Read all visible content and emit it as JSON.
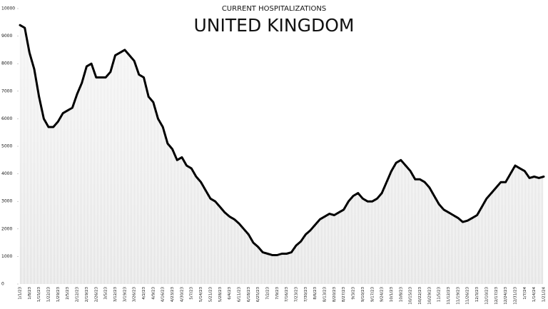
{
  "chart_data": {
    "type": "line",
    "subtitle": "CURRENT HOSPITALIZATIONS",
    "title": "UNITED KINGDOM",
    "categories": [
      "1/1/23",
      null,
      "1/8/23",
      null,
      "1/15/23",
      null,
      "1/22/23",
      null,
      "1/29/23",
      null,
      "2/5/23",
      null,
      "2/12/23",
      null,
      "2/19/23",
      null,
      "2/26/23",
      null,
      "3/5/23",
      null,
      "3/12/23",
      null,
      "3/19/23",
      null,
      "3/26/23",
      null,
      "4/2/23",
      null,
      "4/9/23",
      null,
      "4/16/23",
      null,
      "4/23/23",
      null,
      "4/30/23",
      null,
      "5/7/23",
      null,
      "5/14/23",
      null,
      "5/21/23",
      null,
      "5/28/23",
      null,
      "6/4/23",
      null,
      "6/11/23",
      null,
      "6/18/23",
      null,
      "6/25/23",
      null,
      "7/2/23",
      null,
      "7/9/23",
      null,
      "7/16/23",
      null,
      "7/23/23",
      null,
      "7/30/23",
      null,
      "8/6/23",
      null,
      "8/13/23",
      null,
      "8/20/23",
      null,
      "8/27/23",
      null,
      "9/3/23",
      null,
      "9/10/23",
      null,
      "9/17/23",
      null,
      "9/24/23",
      null,
      "10/1/23",
      null,
      "10/8/23",
      null,
      "10/15/23",
      null,
      "10/22/23",
      null,
      "10/29/23",
      null,
      "11/5/23",
      null,
      "11/12/23",
      null,
      "11/19/23",
      null,
      "11/26/23",
      null,
      "12/3/23",
      null,
      "12/10/23",
      null,
      "12/17/23",
      null,
      "12/24/23",
      null,
      "12/31/23",
      null,
      "1/7/24",
      null,
      "1/14/24",
      null,
      "1/21/24"
    ],
    "series": [
      {
        "name": "Current hospitalizations",
        "color": "#000000",
        "values": [
          9400,
          9300,
          8400,
          7800,
          6800,
          6000,
          5700,
          5700,
          5900,
          6200,
          6300,
          6400,
          6900,
          7300,
          7900,
          8000,
          7500,
          7500,
          7500,
          7700,
          8300,
          8400,
          8500,
          8300,
          8100,
          7600,
          7500,
          6800,
          6600,
          6000,
          5700,
          5100,
          4900,
          4500,
          4600,
          4300,
          4200,
          3900,
          3700,
          3400,
          3100,
          3000,
          2800,
          2600,
          2450,
          2350,
          2200,
          2000,
          1800,
          1500,
          1350,
          1150,
          1100,
          1050,
          1050,
          1100,
          1100,
          1150,
          1400,
          1550,
          1800,
          1950,
          2150,
          2350,
          2450,
          2550,
          2500,
          2600,
          2700,
          3000,
          3200,
          3300,
          3100,
          3000,
          3000,
          3100,
          3300,
          3700,
          4100,
          4400,
          4500,
          4300,
          4100,
          3800,
          3800,
          3700,
          3500,
          3200,
          2900,
          2700,
          2600,
          2500,
          2400,
          2250,
          2300,
          2400,
          2500,
          2800,
          3100,
          3300,
          3500,
          3700,
          3700,
          4000,
          4300,
          4200,
          4100,
          3850,
          3900,
          3850,
          3900
        ]
      }
    ],
    "ylim": [
      0,
      10000
    ],
    "yticks": [
      0,
      1000,
      2000,
      3000,
      4000,
      5000,
      6000,
      7000,
      8000,
      9000,
      10000
    ]
  }
}
